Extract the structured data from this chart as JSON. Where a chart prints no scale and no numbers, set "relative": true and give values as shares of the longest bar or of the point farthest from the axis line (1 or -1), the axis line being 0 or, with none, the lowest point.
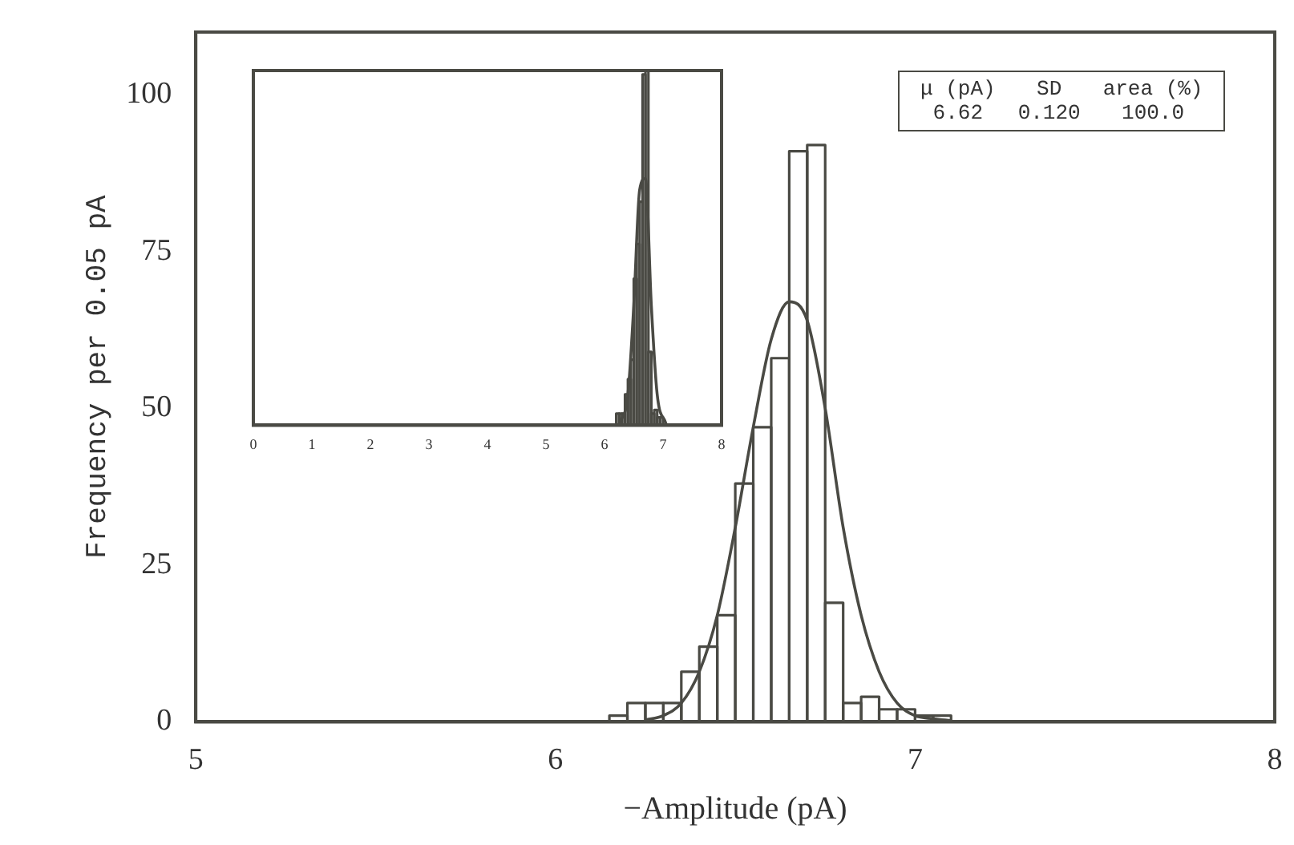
{
  "chart_data": [
    {
      "type": "histogram",
      "xlabel": "−Amplitude (pA)",
      "ylabel": "Frequency per 0.05 pA",
      "color": "#4a4a44",
      "bins": [
        6.15,
        6.2,
        6.25,
        6.3,
        6.35,
        6.4,
        6.45,
        6.5,
        6.55,
        6.6,
        6.65,
        6.7,
        6.75,
        6.8,
        6.85,
        6.9,
        6.95,
        7.0,
        7.05,
        7.1
      ],
      "values": [
        1,
        3,
        3,
        3,
        8,
        12,
        17,
        38,
        47,
        58,
        91,
        92,
        19,
        3,
        4,
        2,
        2,
        1,
        1
      ],
      "series": [
        {
          "type": "line",
          "color": "#4a4a44",
          "x": [
            6.25,
            6.3,
            6.35,
            6.4,
            6.45,
            6.5,
            6.55,
            6.6,
            6.65,
            6.7,
            6.75,
            6.8,
            6.85,
            6.9,
            6.95,
            7.0,
            7.05,
            7.1
          ],
          "values": [
            0.3,
            1,
            3,
            8,
            17,
            31,
            47,
            61,
            67,
            64,
            50,
            31,
            17,
            8,
            3,
            1,
            0.5,
            0.2
          ]
        }
      ],
      "xlim": [
        5,
        8
      ],
      "xticks": [
        5,
        6,
        7,
        8
      ],
      "ylim": [
        0,
        110
      ],
      "yticks": [
        0,
        25,
        50,
        75,
        100
      ],
      "grid": false,
      "legend": false,
      "marker": "none",
      "annotations": [
        "μ (pA)",
        "SD",
        "area (%)",
        "6.62",
        "0.120",
        "100.0"
      ]
    },
    {
      "type": "histogram",
      "relative": true,
      "color": "#4a4a44",
      "bins": [
        6.2,
        6.25,
        6.3,
        6.35,
        6.4,
        6.45,
        6.5,
        6.55,
        6.6,
        6.65,
        6.7,
        6.75,
        6.8,
        6.85,
        6.9,
        6.95,
        7.0
      ],
      "values": [
        0.033,
        0.033,
        0.033,
        0.087,
        0.13,
        0.185,
        0.413,
        0.511,
        0.63,
        0.989,
        1,
        0.207,
        0.033,
        0.043,
        0.022,
        0.022
      ],
      "series": [
        {
          "type": "line",
          "color": "#4a4a44",
          "x": [
            6.25,
            6.4,
            6.5,
            6.6,
            6.7,
            6.8,
            6.9,
            7.05
          ],
          "values": [
            0.003,
            0.087,
            0.337,
            0.663,
            0.696,
            0.337,
            0.087,
            0.005
          ]
        }
      ],
      "xlim": [
        0,
        8
      ],
      "xticks": [
        0,
        1,
        2,
        3,
        4,
        5,
        6,
        7,
        8
      ],
      "tick_labels": "x",
      "grid": false,
      "legend": false,
      "marker": "none"
    }
  ]
}
